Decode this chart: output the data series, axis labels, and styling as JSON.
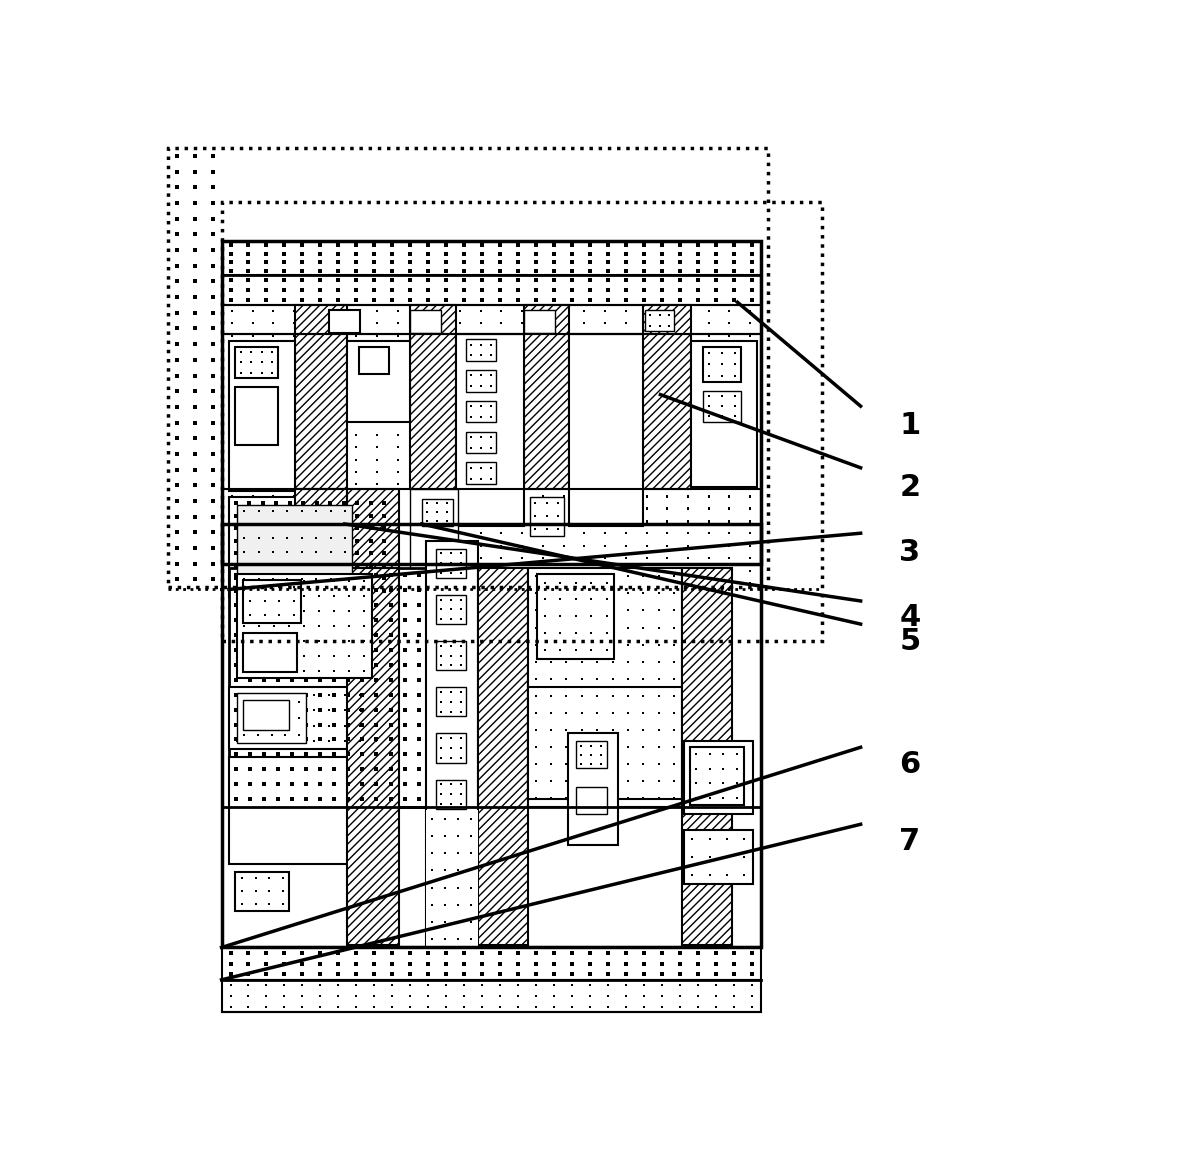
{
  "fig_width": 11.94,
  "fig_height": 11.71,
  "bg_color": "#ffffff",
  "label_fontsize": 22,
  "label_fontweight": "bold"
}
